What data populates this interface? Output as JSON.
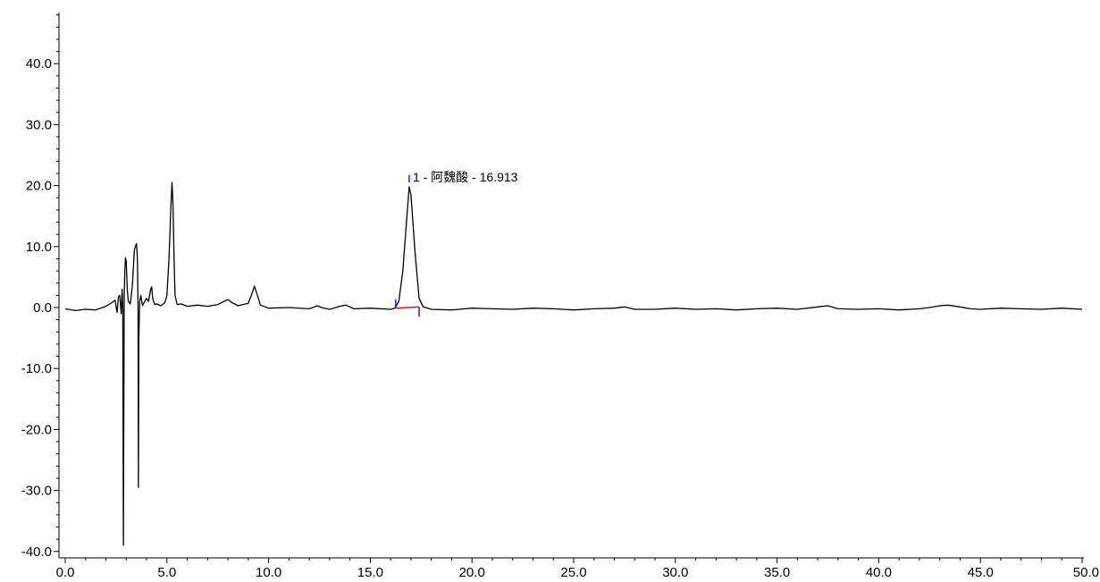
{
  "chart_data": {
    "type": "line",
    "title": "",
    "xlabel": "",
    "ylabel": "",
    "xlim": [
      0,
      50
    ],
    "ylim": [
      -40,
      49
    ],
    "grid": false,
    "x_ticks": [
      0,
      5,
      10,
      15,
      20,
      25,
      30,
      35,
      40,
      45,
      50
    ],
    "x_tick_labels": [
      "0.0",
      "5.0",
      "10.0",
      "15.0",
      "20.0",
      "25.0",
      "30.0",
      "35.0",
      "40.0",
      "45.0",
      "50.0"
    ],
    "y_ticks": [
      -40,
      -30,
      -20,
      -10,
      0,
      10,
      20,
      30,
      40
    ],
    "y_tick_labels": [
      "-40.0",
      "-30.0",
      "-20.0",
      "-10.0",
      "0.0",
      "10.0",
      "20.0",
      "30.0",
      "40.0"
    ],
    "colors": {
      "trace": "#000000",
      "baseline": "#e00000",
      "markers": "#1010cc",
      "axis": "#000000"
    },
    "series": [
      {
        "x": [
          0.0,
          0.5,
          1.0,
          1.5,
          2.0,
          2.3,
          2.45,
          2.55,
          2.62,
          2.68,
          2.75,
          2.8,
          2.83,
          2.86,
          2.9,
          2.93,
          2.96,
          3.0,
          3.05,
          3.1,
          3.2,
          3.3,
          3.4,
          3.5,
          3.55,
          3.58,
          3.6,
          3.62,
          3.66,
          3.72,
          3.76,
          3.8,
          3.9,
          4.0,
          4.1,
          4.2,
          4.25,
          4.3,
          4.4,
          4.5,
          4.7,
          4.9,
          5.0,
          5.1,
          5.2,
          5.25,
          5.3,
          5.35,
          5.4,
          5.5,
          5.7,
          6.0,
          6.5,
          7.0,
          7.5,
          7.8,
          8.0,
          8.2,
          8.5,
          9.0,
          9.15,
          9.3,
          9.45,
          9.6,
          10.0,
          11.0,
          12.0,
          12.4,
          12.6,
          13.0,
          13.5,
          13.8,
          14.2,
          15.0,
          16.0,
          16.2,
          16.4,
          16.6,
          16.8,
          16.913,
          17.0,
          17.2,
          17.4,
          17.6,
          18.0,
          19.0,
          20.0,
          21.0,
          22.0,
          23.0,
          24.0,
          25.0,
          26.0,
          27.0,
          27.5,
          28.0,
          29.0,
          30.0,
          31.0,
          32.0,
          33.0,
          34.0,
          35.0,
          36.0,
          37.0,
          37.5,
          38.0,
          39.0,
          40.0,
          41.0,
          42.0,
          42.5,
          43.0,
          43.4,
          44.0,
          44.5,
          45.0,
          46.0,
          47.0,
          48.0,
          49.0,
          50.0
        ],
        "y": [
          -0.2,
          -0.5,
          -0.3,
          -0.4,
          0.2,
          0.8,
          1.2,
          -0.8,
          1.8,
          2.0,
          -1.0,
          3.0,
          0.0,
          -39.0,
          2.0,
          6.0,
          8.2,
          7.5,
          3.0,
          1.0,
          0.6,
          3.5,
          9.5,
          10.5,
          8.0,
          0.0,
          -29.5,
          -5.0,
          1.0,
          2.0,
          1.0,
          0.3,
          1.0,
          1.5,
          1.0,
          3.0,
          3.4,
          1.5,
          0.5,
          0.6,
          0.3,
          0.8,
          2.0,
          8.0,
          17.0,
          20.5,
          17.0,
          8.0,
          2.0,
          0.5,
          0.6,
          0.2,
          0.4,
          0.2,
          0.5,
          1.0,
          1.3,
          0.8,
          0.3,
          0.7,
          2.0,
          3.5,
          2.0,
          0.4,
          -0.1,
          0.0,
          -0.2,
          0.3,
          0.0,
          -0.3,
          0.2,
          0.4,
          -0.2,
          -0.1,
          -0.3,
          -0.1,
          1.0,
          6.0,
          15.0,
          19.8,
          18.5,
          9.0,
          1.5,
          0.1,
          -0.3,
          -0.4,
          -0.1,
          -0.2,
          -0.3,
          -0.1,
          -0.2,
          -0.4,
          -0.2,
          -0.1,
          0.1,
          -0.3,
          -0.3,
          -0.1,
          -0.3,
          -0.2,
          -0.4,
          -0.2,
          -0.1,
          -0.3,
          0.1,
          0.3,
          -0.2,
          -0.3,
          -0.2,
          -0.4,
          -0.2,
          0.0,
          0.3,
          0.4,
          0.1,
          -0.2,
          -0.3,
          -0.1,
          -0.2,
          -0.3,
          -0.1,
          -0.3
        ]
      }
    ],
    "peaks": [
      {
        "label": "1 - 阿魏酸 - 16.913",
        "x": 16.913,
        "y": 19.8,
        "start_x": 16.25,
        "start_y": -0.1,
        "end_x": 17.4,
        "end_y": 0.1
      }
    ]
  }
}
